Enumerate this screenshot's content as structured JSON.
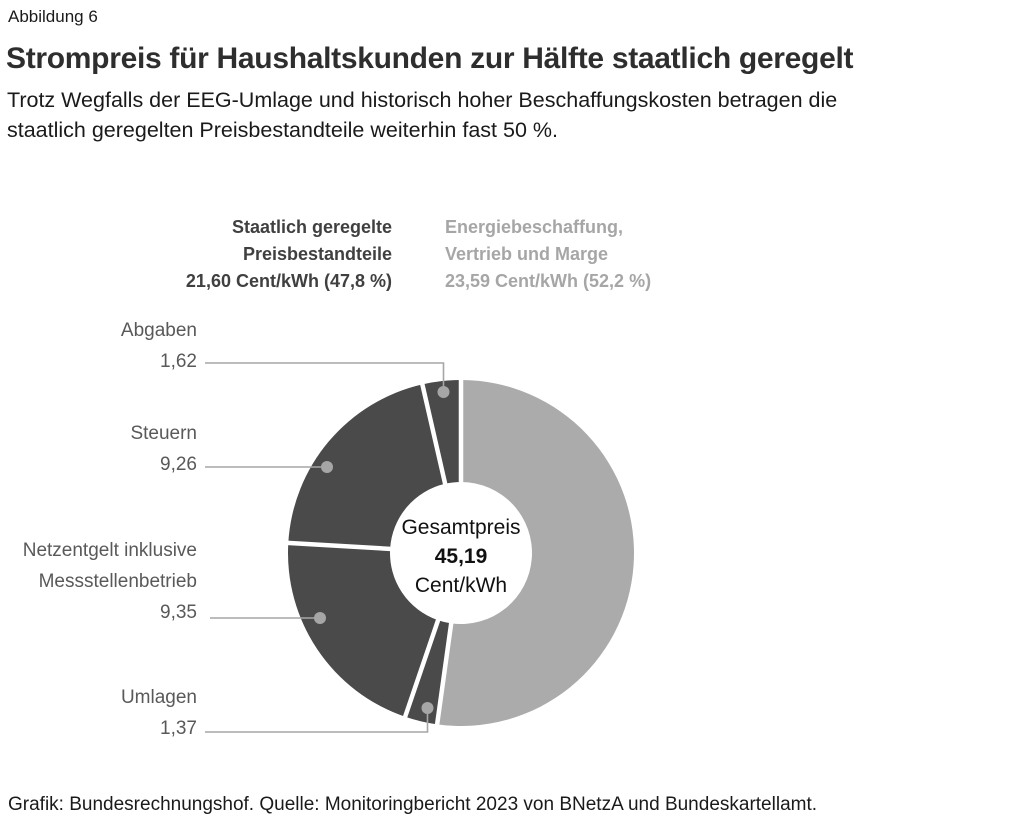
{
  "header": {
    "figure_label": "Abbildung 6",
    "title": "Strompreis für Haushaltskunden zur Hälfte staatlich geregelt",
    "subtitle_line1": "Trotz Wegfalls der EEG-Umlage und historisch hoher Beschaffungskosten betragen die",
    "subtitle_line2": "staatlich geregelten Preisbestandteile weiterhin fast 50 %."
  },
  "chart_data": {
    "type": "donut",
    "unit": "Cent/kWh",
    "total": 45.19,
    "center": {
      "label": "Gesamtpreis",
      "value": "45,19",
      "unit": "Cent/kWh"
    },
    "groups": [
      {
        "name": "Staatlich geregelte Preisbestandteile",
        "value": 21.6,
        "share_pct": 47.8,
        "color": "#4a4a4a",
        "label_line1": "Staatlich geregelte",
        "label_line2": "Preisbestandteile",
        "label_line3": "21,60 Cent/kWh (47,8 %)"
      },
      {
        "name": "Energiebeschaffung, Vertrieb und Marge",
        "value": 23.59,
        "share_pct": 52.2,
        "color": "#ababab",
        "label_line1": "Energiebeschaffung,",
        "label_line2": "Vertrieb und Marge",
        "label_line3": "23,59 Cent/kWh (52,2 %)"
      }
    ],
    "segments": [
      {
        "key": "energiebeschaffung",
        "name": "Energiebeschaffung, Vertrieb und Marge",
        "value": 23.59,
        "color": "#ababab"
      },
      {
        "key": "umlagen",
        "name": "Umlagen",
        "value": 1.37,
        "color": "#4a4a4a"
      },
      {
        "key": "netzentgelt",
        "name": "Netzentgelt inklusive Messstellenbetrieb",
        "value": 9.35,
        "color": "#4a4a4a"
      },
      {
        "key": "steuern",
        "name": "Steuern",
        "value": 9.26,
        "color": "#4a4a4a"
      },
      {
        "key": "abgaben",
        "name": "Abgaben",
        "value": 1.62,
        "color": "#4a4a4a"
      }
    ],
    "callouts": {
      "abgaben": {
        "label": "Abgaben",
        "value": "1,62"
      },
      "steuern": {
        "label": "Steuern",
        "value": "9,26"
      },
      "netzentgelt": {
        "label_line1": "Netzentgelt inklusive",
        "label_line2": "Messstellenbetrieb",
        "value": "9,35"
      },
      "umlagen": {
        "label": "Umlagen",
        "value": "1,37"
      }
    },
    "colors": {
      "regulated": "#4a4a4a",
      "market": "#ababab",
      "leader": "#a6a6a6",
      "separator": "#ffffff"
    }
  },
  "footer": {
    "source": "Grafik: Bundesrechnungshof. Quelle: Monitoringbericht 2023 von BNetzA und Bundeskartellamt."
  }
}
